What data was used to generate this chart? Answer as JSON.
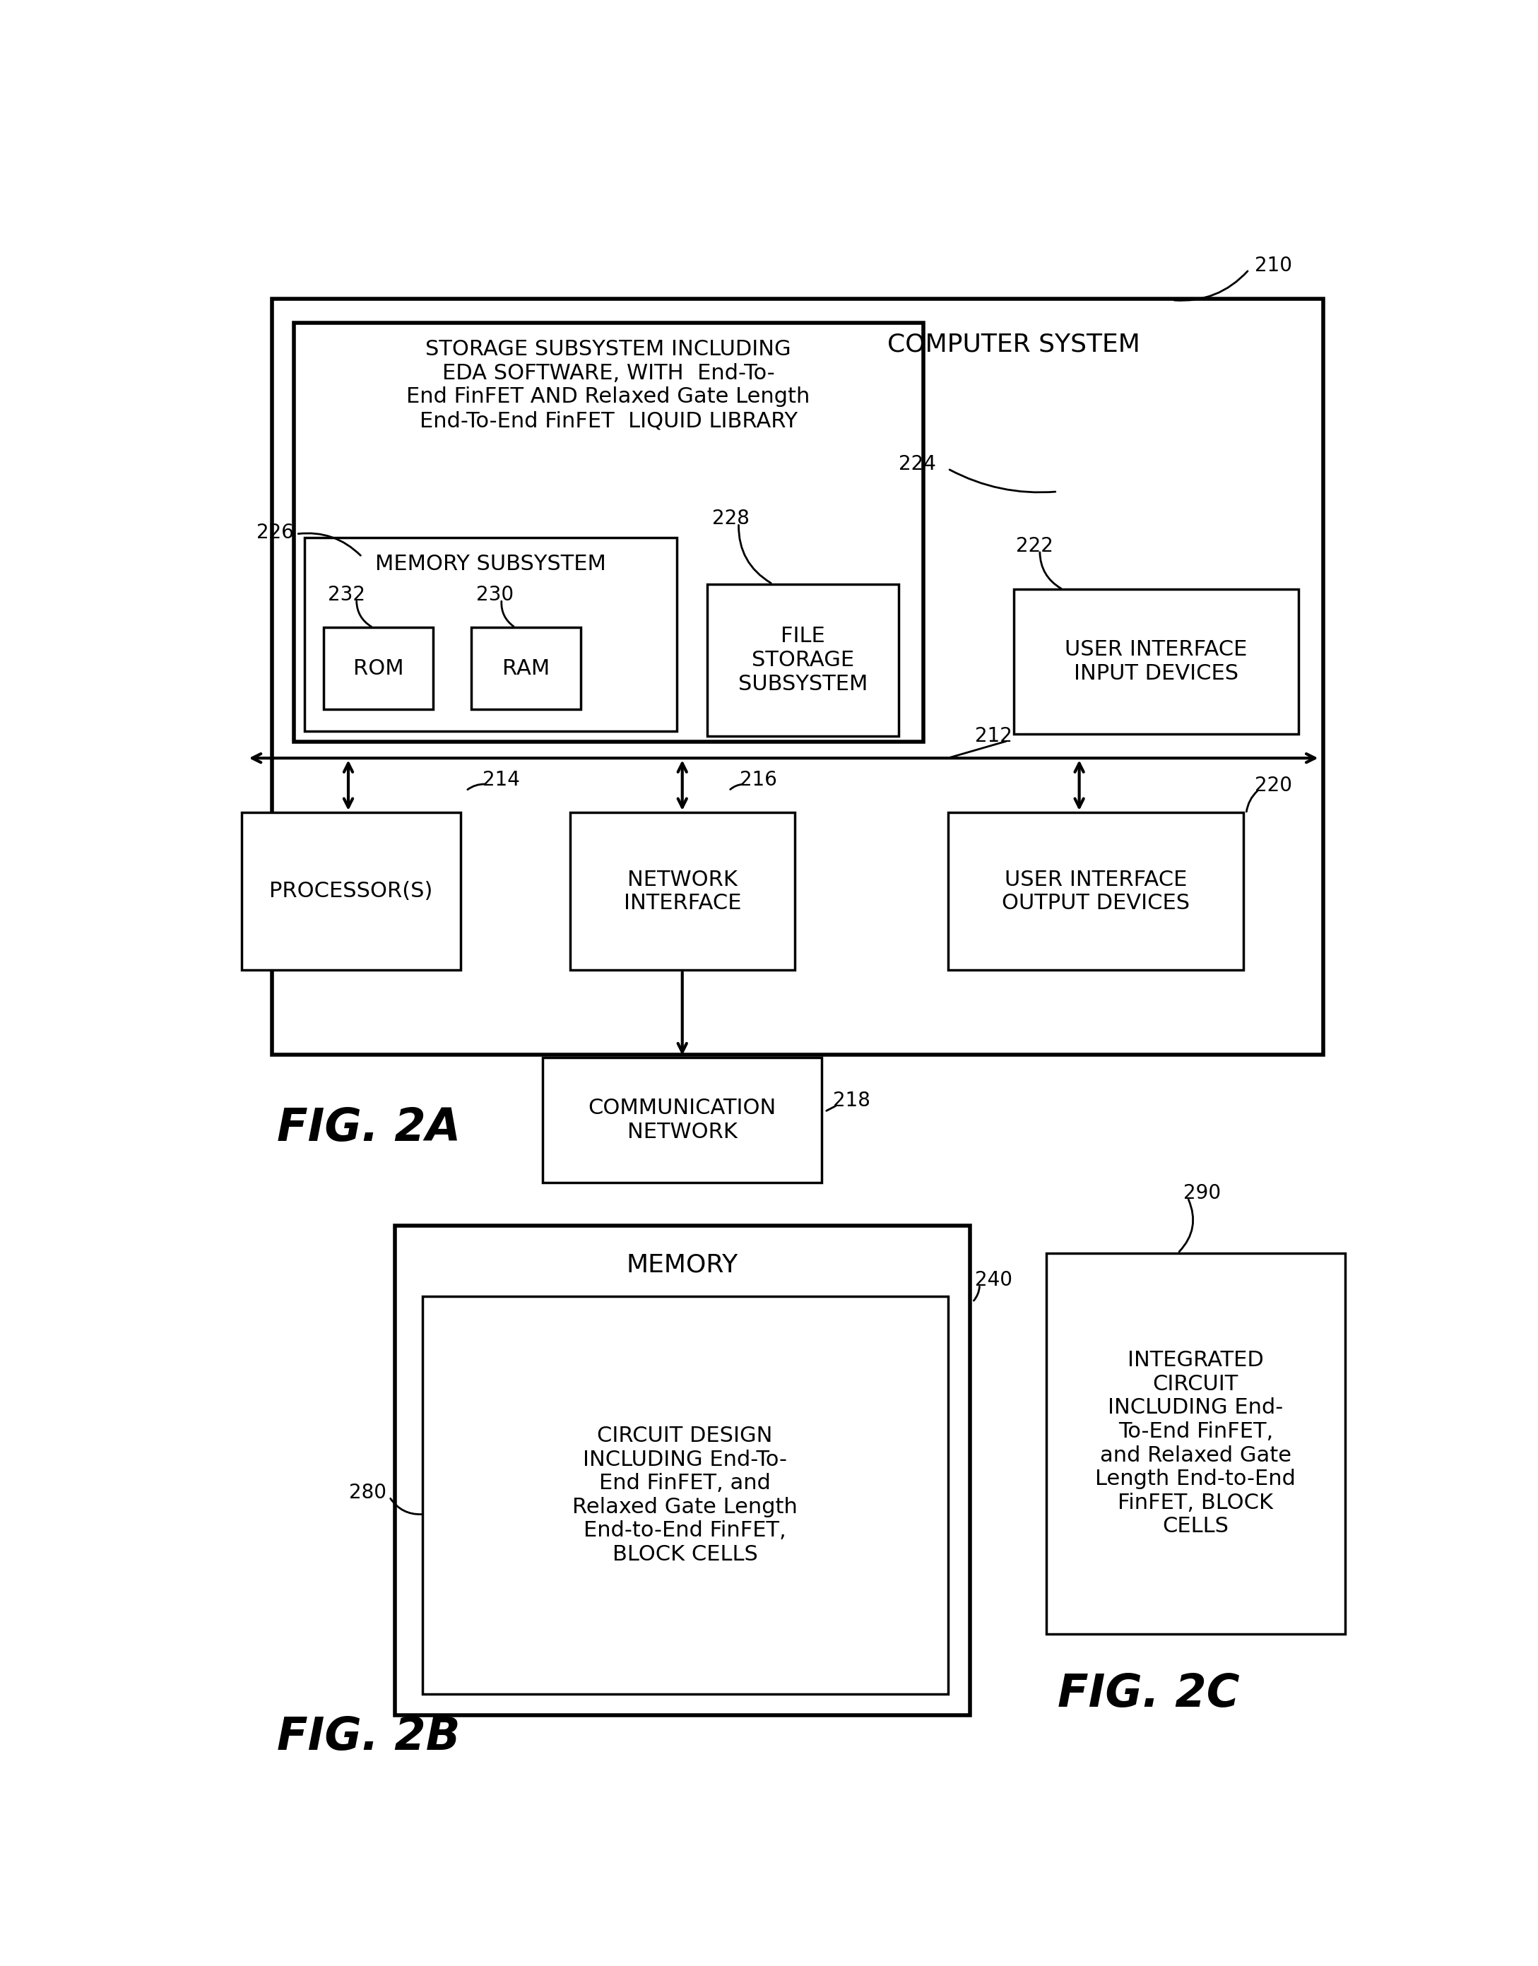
{
  "fig_width": 21.77,
  "fig_height": 27.83,
  "bg_color": "#ffffff",
  "line_color": "#000000",
  "text_color": "#000000",
  "fig2a_label": "FIG. 2A",
  "fig2b_label": "FIG. 2B",
  "fig2c_label": "FIG. 2C",
  "ref_210": "210",
  "ref_212": "212",
  "ref_214": "214",
  "ref_216": "216",
  "ref_218": "218",
  "ref_220": "220",
  "ref_222": "222",
  "ref_224": "224",
  "ref_226": "226",
  "ref_228": "228",
  "ref_230": "230",
  "ref_232": "232",
  "ref_240": "240",
  "ref_280": "280",
  "ref_290": "290",
  "computer_system_text": "COMPUTER SYSTEM",
  "storage_text": "STORAGE SUBSYSTEM INCLUDING\nEDA SOFTWARE, WITH  End-To-\nEnd FinFET AND Relaxed Gate Length\nEnd-To-End FinFET  LIQUID LIBRARY",
  "memory_subsystem_text": "MEMORY SUBSYSTEM",
  "rom_text": "ROM",
  "ram_text": "RAM",
  "file_storage_text": "FILE\nSTORAGE\nSUBSYSTEM",
  "user_interface_input_text": "USER INTERFACE\nINPUT DEVICES",
  "processor_text": "PROCESSOR(S)",
  "network_interface_text": "NETWORK\nINTERFACE",
  "user_interface_output_text": "USER INTERFACE\nOUTPUT DEVICES",
  "communication_network_text": "COMMUNICATION\nNETWORK",
  "memory_text": "MEMORY",
  "circuit_design_text": "CIRCUIT DESIGN\nINCLUDING End-To-\nEnd FinFET, and\nRelaxed Gate Length\nEnd-to-End FinFET,\nBLOCK CELLS",
  "integrated_circuit_text": "INTEGRATED\nCIRCUIT\nINCLUDING End-\nTo-End FinFET,\nand Relaxed Gate\nLength End-to-End\nFinFET, BLOCK\nCELLS"
}
